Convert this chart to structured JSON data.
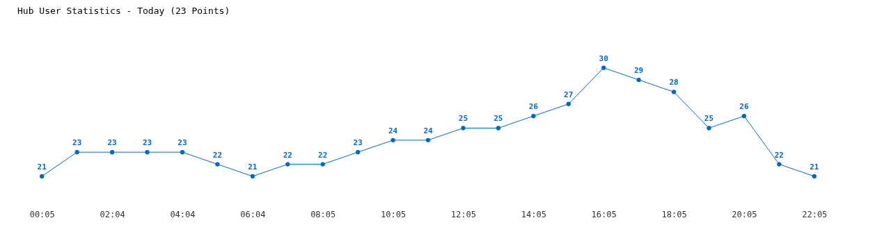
{
  "chart_data": {
    "type": "line",
    "title": "Hub User Statistics - Today (23 Points)",
    "categories": [
      "00:05",
      null,
      "02:04",
      null,
      "04:04",
      null,
      "06:04",
      null,
      "08:05",
      null,
      "10:05",
      null,
      "12:05",
      null,
      "14:05",
      null,
      "16:05",
      null,
      "18:05",
      null,
      "20:05",
      null,
      "22:05"
    ],
    "series": [
      {
        "color": "#0066cc",
        "values": [
          21,
          23,
          23,
          23,
          23,
          22,
          21,
          22,
          22,
          23,
          24,
          24,
          25,
          25,
          26,
          27,
          30,
          29,
          28,
          25,
          26,
          22,
          21
        ]
      }
    ],
    "data_labels": true,
    "marker": "circle"
  }
}
